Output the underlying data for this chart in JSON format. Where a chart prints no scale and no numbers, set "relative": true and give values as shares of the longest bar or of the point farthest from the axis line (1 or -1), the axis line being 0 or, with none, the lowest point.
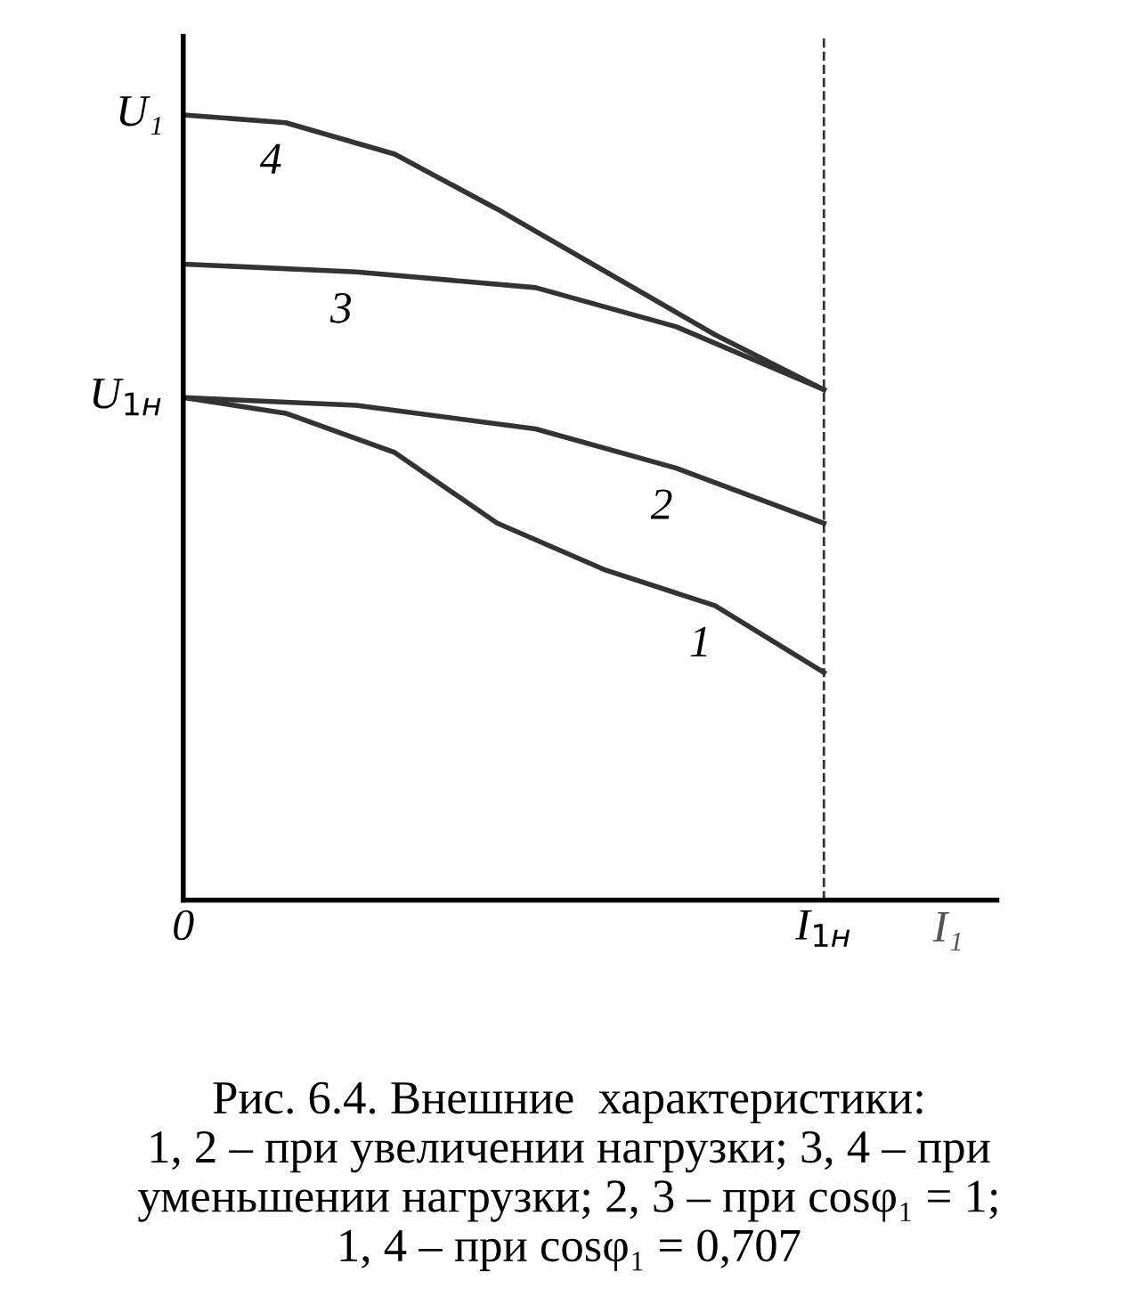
{
  "chart_data": {
    "type": "line",
    "xlabel": "I₁",
    "xlim": [
      0,
      1.27
    ],
    "xticks": [
      {
        "value": 0,
        "label": "0"
      },
      {
        "value": 1.0,
        "label": "I$_{1н}$"
      }
    ],
    "relative": true,
    "series": [
      {
        "color": "#333333",
        "x": [
          0,
          0.16,
          0.33,
          0.49,
          0.66,
          0.83,
          1.0
        ],
        "values": [
          0.64,
          0.62,
          0.57,
          0.48,
          0.42,
          0.375,
          0.29
        ]
      },
      {
        "color": "#333333",
        "x": [
          0,
          0.27,
          0.55,
          0.77,
          1.0
        ],
        "values": [
          0.64,
          0.63,
          0.6,
          0.55,
          0.48
        ]
      },
      {
        "color": "#333333",
        "x": [
          0,
          0.27,
          0.55,
          0.77,
          1.0
        ],
        "values": [
          0.81,
          0.8,
          0.78,
          0.73,
          0.65
        ]
      },
      {
        "color": "#333333",
        "x": [
          0,
          0.16,
          0.33,
          0.49,
          0.66,
          0.83,
          1.0
        ],
        "values": [
          1.0,
          0.99,
          0.95,
          0.88,
          0.8,
          0.72,
          0.65
        ]
      }
    ],
    "ref_lines": [
      {
        "axis": "x",
        "value": 1.0,
        "line_style": "dashed",
        "color": "#333333"
      }
    ],
    "annotations": [
      {
        "text": "1",
        "x": 0.83,
        "y": 0.375
      },
      {
        "text": "2",
        "x": 0.77,
        "y": 0.55
      },
      {
        "text": "3",
        "x": 0.27,
        "y": 0.8
      },
      {
        "text": "4",
        "x": 0.16,
        "y": 0.99
      },
      {
        "text": "U₁",
        "x": 0,
        "y": 1.0
      },
      {
        "text": "U$_{1н}$",
        "x": 0,
        "y": 0.64
      },
      "Рис. 6.4. Внешние  характеристики:\n1, 2 – при увеличении нагрузки; 3, 4 – при\nуменьшении нагрузки; 2, 3 – при cosφ₁ = 1;\n1, 4 – при cosφ₁ = 0,707"
    ],
    "legend": false,
    "marker": "none",
    "line_style": "solid"
  }
}
